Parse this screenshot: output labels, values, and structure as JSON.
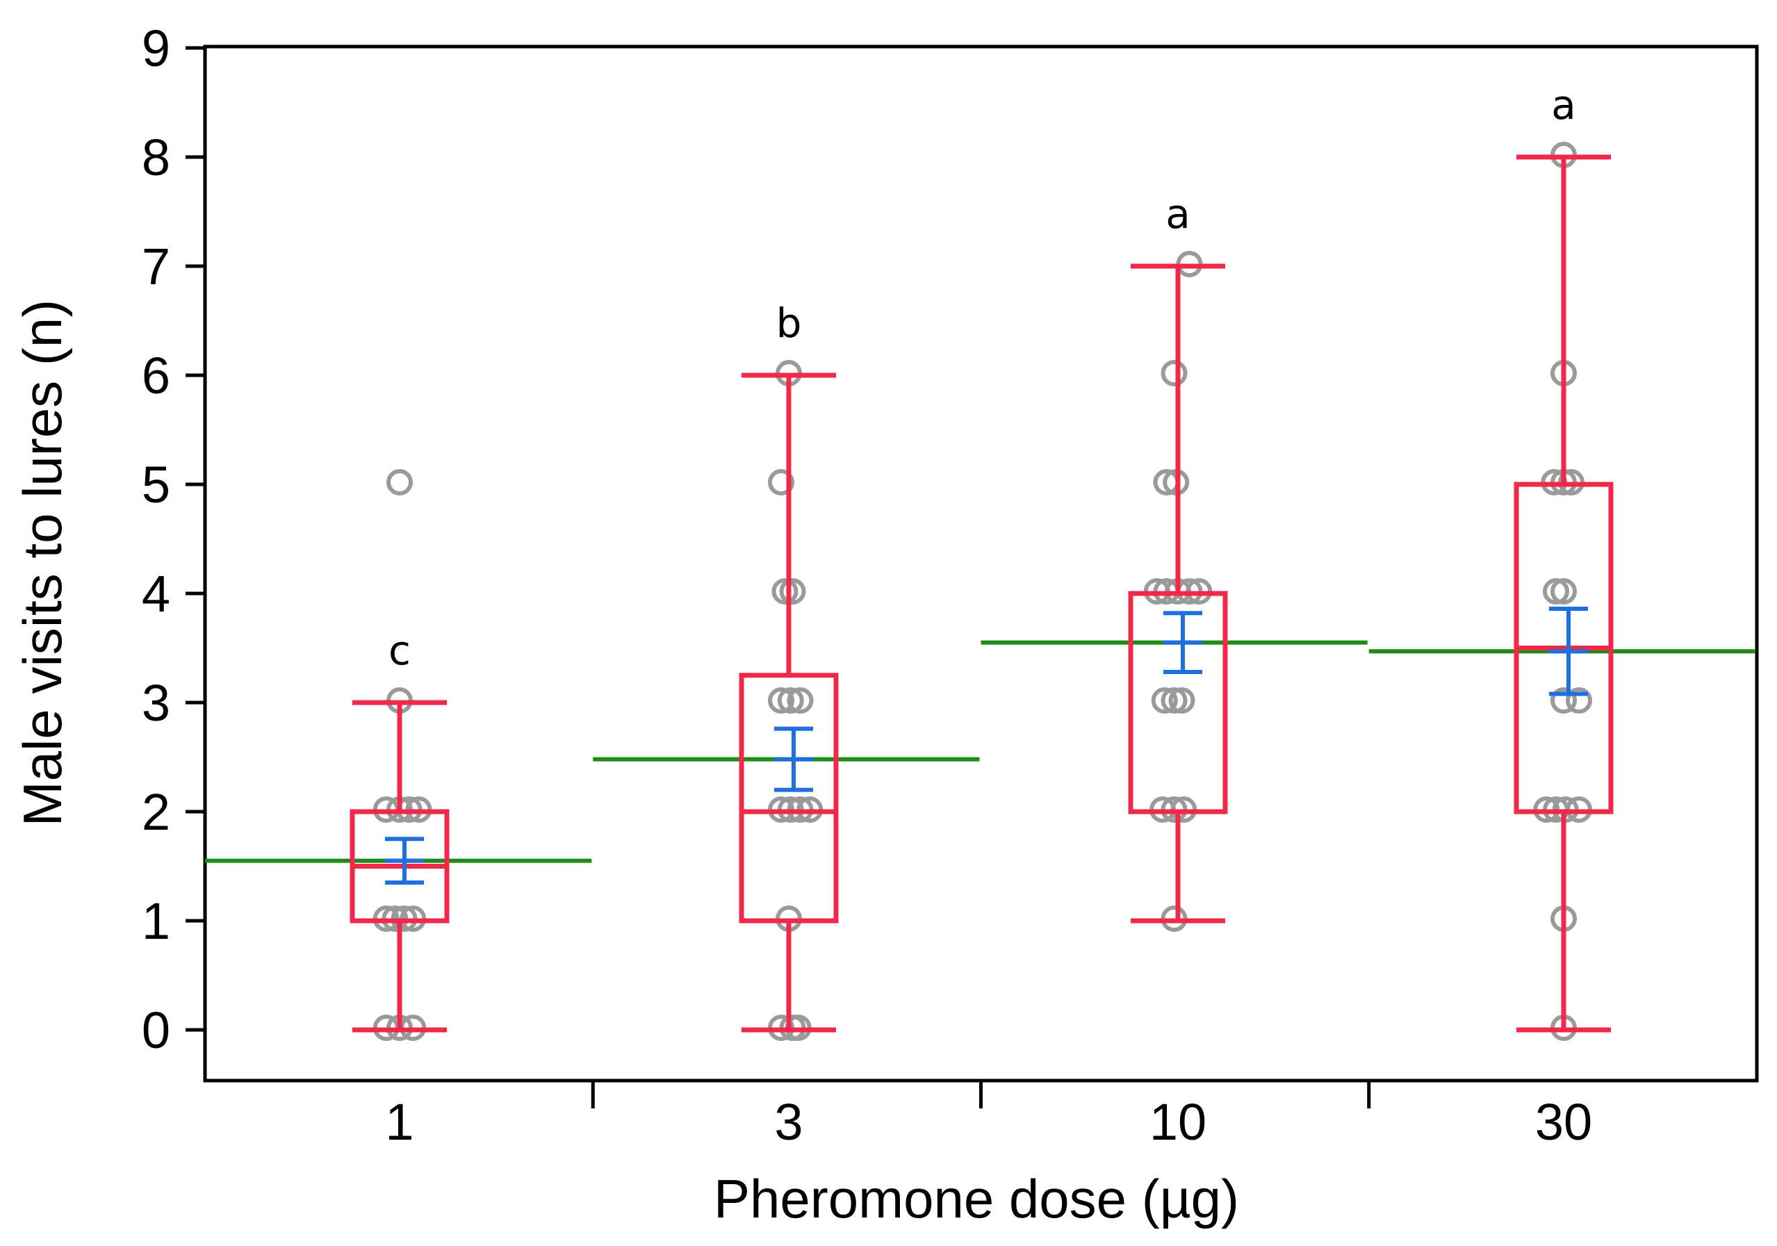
{
  "chart_data": {
    "type": "box",
    "xlabel": "Pheromone dose (µg)",
    "ylabel": "Male visits to lures (n)",
    "ylim": [
      -0.5,
      9
    ],
    "yticks": [
      0,
      1,
      2,
      3,
      4,
      5,
      6,
      7,
      8,
      9
    ],
    "categories": [
      "1",
      "3",
      "10",
      "30"
    ],
    "groups": [
      {
        "category": "1",
        "whisker_low": 0,
        "q1": 1,
        "median": 1.5,
        "q3": 2,
        "whisker_high": 3,
        "mean": 1.55,
        "mean_se_low": 1.35,
        "mean_se_high": 1.75,
        "group_mean_line": 1.55,
        "significance": "c",
        "points": [
          {
            "y": 0,
            "dx": -0.35
          },
          {
            "y": 0,
            "dx": 0.0
          },
          {
            "y": 0,
            "dx": 0.35
          },
          {
            "y": 1,
            "dx": -0.35
          },
          {
            "y": 1,
            "dx": -0.12
          },
          {
            "y": 1,
            "dx": 0.12
          },
          {
            "y": 1,
            "dx": 0.35
          },
          {
            "y": 2,
            "dx": -0.35
          },
          {
            "y": 2,
            "dx": 0.0
          },
          {
            "y": 2,
            "dx": 0.25
          },
          {
            "y": 2,
            "dx": 0.5
          },
          {
            "y": 3,
            "dx": 0.0
          },
          {
            "y": 5,
            "dx": 0.0
          }
        ]
      },
      {
        "category": "3",
        "whisker_low": 0,
        "q1": 1,
        "median": 2,
        "q3": 3.25,
        "whisker_high": 6,
        "mean": 2.48,
        "mean_se_low": 2.2,
        "mean_se_high": 2.76,
        "group_mean_line": 2.48,
        "significance": "b",
        "points": [
          {
            "y": 0,
            "dx": -0.2
          },
          {
            "y": 0,
            "dx": 0.1
          },
          {
            "y": 0,
            "dx": 0.25
          },
          {
            "y": 1,
            "dx": 0.0
          },
          {
            "y": 2,
            "dx": -0.2
          },
          {
            "y": 2,
            "dx": 0.05
          },
          {
            "y": 2,
            "dx": 0.3
          },
          {
            "y": 2,
            "dx": 0.55
          },
          {
            "y": 3,
            "dx": -0.2
          },
          {
            "y": 3,
            "dx": 0.05
          },
          {
            "y": 3,
            "dx": 0.3
          },
          {
            "y": 4,
            "dx": -0.1
          },
          {
            "y": 4,
            "dx": 0.1
          },
          {
            "y": 5,
            "dx": -0.2
          },
          {
            "y": 6,
            "dx": 0.0
          }
        ]
      },
      {
        "category": "10",
        "whisker_low": 1,
        "q1": 2,
        "median": 4,
        "q3": 4,
        "whisker_high": 7,
        "mean": 3.55,
        "mean_se_low": 3.28,
        "mean_se_high": 3.82,
        "group_mean_line": 3.55,
        "significance": "a",
        "points": [
          {
            "y": 1,
            "dx": -0.1
          },
          {
            "y": 2,
            "dx": -0.4
          },
          {
            "y": 2,
            "dx": -0.1
          },
          {
            "y": 2,
            "dx": 0.15
          },
          {
            "y": 3,
            "dx": -0.35
          },
          {
            "y": 3,
            "dx": -0.1
          },
          {
            "y": 3,
            "dx": 0.1
          },
          {
            "y": 4,
            "dx": -0.55
          },
          {
            "y": 4,
            "dx": -0.3
          },
          {
            "y": 4,
            "dx": 0.0
          },
          {
            "y": 4,
            "dx": 0.3
          },
          {
            "y": 4,
            "dx": 0.55
          },
          {
            "y": 5,
            "dx": -0.3
          },
          {
            "y": 5,
            "dx": -0.05
          },
          {
            "y": 6,
            "dx": -0.1
          },
          {
            "y": 7,
            "dx": 0.3
          }
        ]
      },
      {
        "category": "30",
        "whisker_low": 0,
        "q1": 2,
        "median": 3.5,
        "q3": 5,
        "whisker_high": 8,
        "mean": 3.47,
        "mean_se_low": 3.08,
        "mean_se_high": 3.86,
        "group_mean_line": 3.47,
        "significance": "a",
        "points": [
          {
            "y": 0,
            "dx": 0.0
          },
          {
            "y": 1,
            "dx": 0.0
          },
          {
            "y": 2,
            "dx": -0.45
          },
          {
            "y": 2,
            "dx": -0.2
          },
          {
            "y": 2,
            "dx": 0.05
          },
          {
            "y": 2,
            "dx": 0.4
          },
          {
            "y": 3,
            "dx": 0.0
          },
          {
            "y": 3,
            "dx": 0.4
          },
          {
            "y": 4,
            "dx": -0.2
          },
          {
            "y": 4,
            "dx": 0.0
          },
          {
            "y": 5,
            "dx": -0.25
          },
          {
            "y": 5,
            "dx": 0.0
          },
          {
            "y": 5,
            "dx": 0.2
          },
          {
            "y": 6,
            "dx": 0.0
          },
          {
            "y": 8,
            "dx": 0.0
          }
        ]
      }
    ]
  },
  "colors": {
    "box": "#f0284a",
    "mean_error": "#1f6fe0",
    "group_mean": "#1e8a17",
    "points": "#9a9a9a",
    "axis": "#000000"
  }
}
